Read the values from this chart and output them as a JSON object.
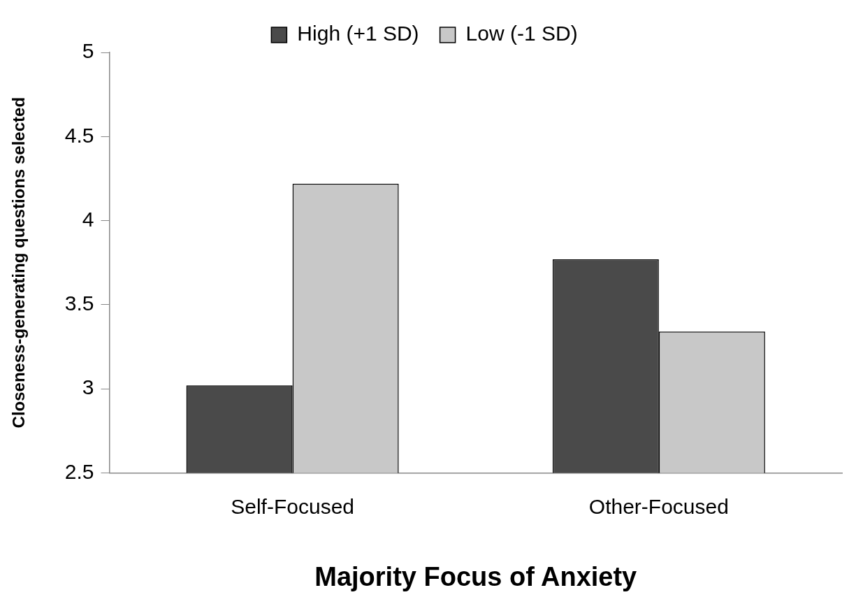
{
  "chart_data": {
    "type": "bar",
    "xlabel": "Majority Focus of Anxiety",
    "ylabel": "Closeness-generating questions selected",
    "categories": [
      "Self-Focused",
      "Other-Focused"
    ],
    "series": [
      {
        "name": "High (+1 SD)",
        "color": "#4a4a4a",
        "values": [
          3.02,
          3.77
        ]
      },
      {
        "name": "Low (-1 SD)",
        "color": "#c8c8c8",
        "values": [
          4.22,
          3.34
        ]
      }
    ],
    "ylim": [
      2.5,
      5
    ],
    "yticks": [
      2.5,
      3,
      3.5,
      4,
      4.5,
      5
    ],
    "grid": false,
    "legend": "top"
  }
}
